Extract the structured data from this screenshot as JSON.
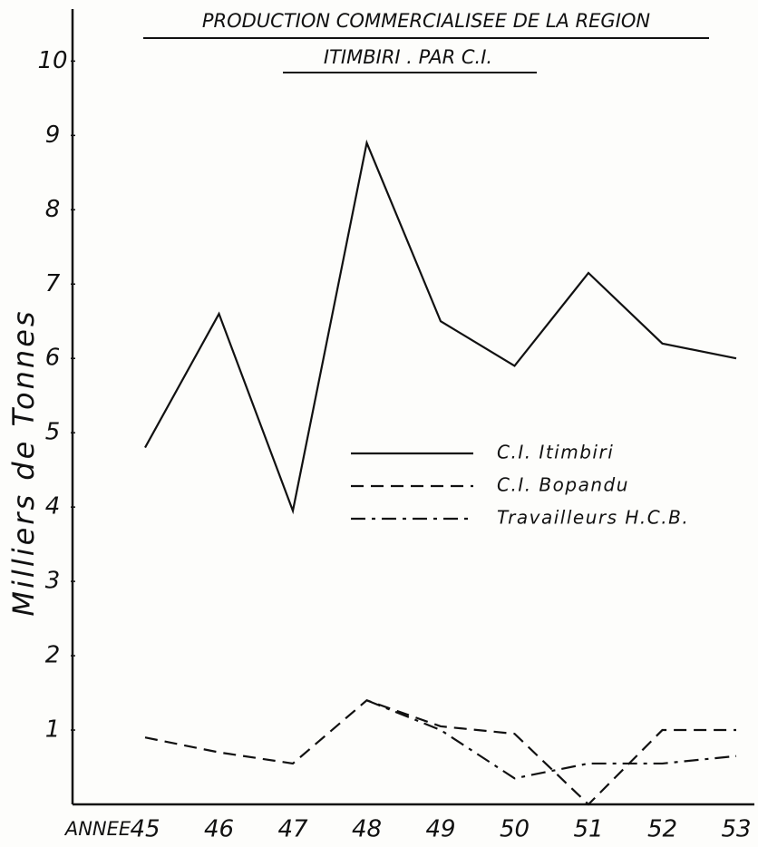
{
  "chart_data": {
    "type": "line",
    "title": "PRODUCTION COMMERCIALISEE DE LA REGION",
    "subtitle": "ITIMBIRI . PAR C.I.",
    "y_label": "Milliers de Tonnes",
    "x_label": "ANNEE",
    "categories": [
      "45",
      "46",
      "47",
      "48",
      "49",
      "50",
      "51",
      "52",
      "53"
    ],
    "series": [
      {
        "name": "C.I. Itimbiri",
        "color": "#111111",
        "dash": "solid",
        "values": [
          4.8,
          6.6,
          3.95,
          8.9,
          6.5,
          5.9,
          7.15,
          6.2,
          6.0
        ]
      },
      {
        "name": "C.I. Bopandu",
        "color": "#111111",
        "dash": "dashed",
        "values": [
          0.9,
          0.7,
          0.55,
          1.4,
          1.05,
          0.95,
          0.0,
          1.0,
          1.0
        ]
      },
      {
        "name": "Travailleurs H.C.B.",
        "color": "#111111",
        "dash": "dashdot",
        "values": [
          null,
          null,
          null,
          1.4,
          1.0,
          0.35,
          0.55,
          0.55,
          0.65
        ]
      }
    ],
    "ylim": [
      0,
      10.7
    ],
    "yticks": [
      1,
      2,
      3,
      4,
      5,
      6,
      7,
      8,
      9,
      10
    ],
    "grid": false
  }
}
